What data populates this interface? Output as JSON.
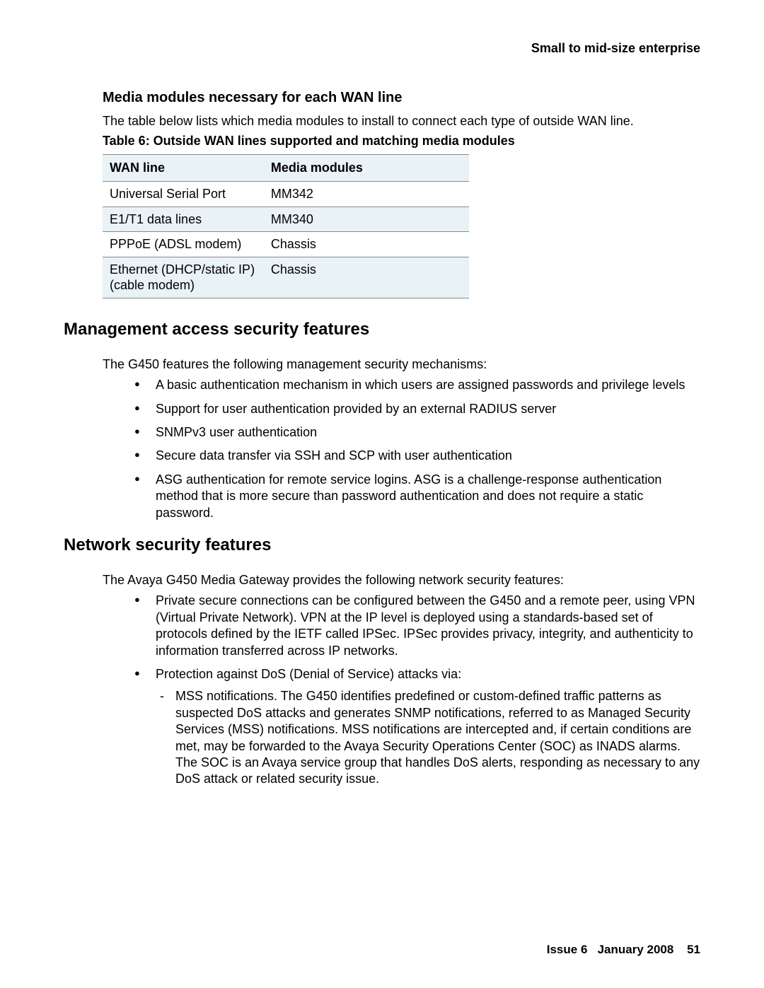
{
  "header": {
    "right_text": "Small to mid-size enterprise"
  },
  "section1": {
    "heading": "Media modules necessary for each WAN line",
    "intro": "The table below lists which media modules to install to connect each type of outside WAN line.",
    "table_caption": "Table 6: Outside WAN lines supported and matching media modules",
    "table": {
      "columns": [
        "WAN line",
        "Media modules"
      ],
      "col_widths": [
        "44%",
        "56%"
      ],
      "header_bg": "#e9f2f7",
      "alt_bg": "#e9f2f7",
      "rows": [
        [
          "Universal Serial Port",
          "MM342"
        ],
        [
          "E1/T1 data lines",
          "MM340"
        ],
        [
          "PPPoE (ADSL modem)",
          "Chassis"
        ],
        [
          "Ethernet (DHCP/static IP) (cable modem)",
          "Chassis"
        ]
      ]
    }
  },
  "section2": {
    "heading": "Management access security features",
    "intro": "The G450 features the following management security mechanisms:",
    "bullets": [
      "A basic authentication mechanism in which users are assigned passwords and privilege levels",
      "Support for user authentication provided by an external RADIUS server",
      "SNMPv3 user authentication",
      "Secure data transfer via SSH and SCP with user authentication",
      "ASG authentication for remote service logins. ASG is a challenge-response authentication method that is more secure than password authentication and does not require a static password."
    ]
  },
  "section3": {
    "heading": "Network security features",
    "intro": "The Avaya G450 Media Gateway provides the following network security features:",
    "bullets": [
      {
        "text": "Private secure connections can be configured between the G450 and a remote peer, using VPN (Virtual Private Network). VPN at the IP level is deployed using a standards-based set of protocols defined by the IETF called IPSec. IPSec provides privacy, integrity, and authenticity to information transferred across IP networks."
      },
      {
        "text": "Protection against DoS (Denial of Service) attacks via:",
        "sub": [
          "MSS notifications. The G450 identifies predefined or custom-defined traffic patterns as suspected DoS attacks and generates SNMP notifications, referred to as Managed Security Services (MSS) notifications. MSS notifications are intercepted and, if certain conditions are met, may be forwarded to the Avaya Security Operations Center (SOC) as INADS alarms. The SOC is an Avaya service group that handles DoS alerts, responding as necessary to any DoS attack or related security issue."
        ]
      }
    ]
  },
  "footer": {
    "issue": "Issue 6",
    "date": "January 2008",
    "page": "51"
  }
}
